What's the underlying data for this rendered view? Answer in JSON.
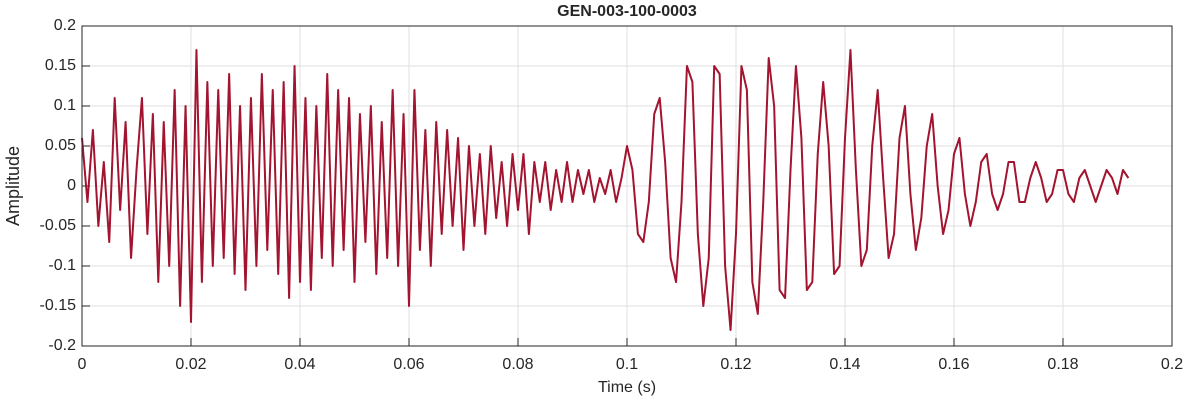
{
  "chart_data": {
    "type": "line",
    "title": "GEN-003-100-0003",
    "xlabel": "Time (s)",
    "ylabel": "Amplitude",
    "x": [
      0,
      0.001,
      0.002,
      0.003,
      0.004,
      0.005,
      0.006,
      0.007,
      0.008,
      0.009,
      0.01,
      0.011,
      0.012,
      0.013,
      0.014,
      0.015,
      0.016,
      0.017,
      0.018,
      0.019,
      0.02,
      0.021,
      0.022,
      0.023,
      0.024,
      0.025,
      0.026,
      0.027,
      0.028,
      0.029,
      0.03,
      0.031,
      0.032,
      0.033,
      0.034,
      0.035,
      0.036,
      0.037,
      0.038,
      0.039,
      0.04,
      0.041,
      0.042,
      0.043,
      0.044,
      0.045,
      0.046,
      0.047,
      0.048,
      0.049,
      0.05,
      0.051,
      0.052,
      0.053,
      0.054,
      0.055,
      0.056,
      0.057,
      0.058,
      0.059,
      0.06,
      0.061,
      0.062,
      0.063,
      0.064,
      0.065,
      0.066,
      0.067,
      0.068,
      0.069,
      0.07,
      0.071,
      0.072,
      0.073,
      0.074,
      0.075,
      0.076,
      0.077,
      0.078,
      0.079,
      0.08,
      0.081,
      0.082,
      0.083,
      0.084,
      0.085,
      0.086,
      0.087,
      0.088,
      0.089,
      0.09,
      0.091,
      0.092,
      0.093,
      0.094,
      0.095,
      0.096,
      0.097,
      0.098,
      0.099,
      0.1,
      0.101,
      0.102,
      0.103,
      0.104,
      0.105,
      0.106,
      0.107,
      0.108,
      0.109,
      0.11,
      0.111,
      0.112,
      0.113,
      0.114,
      0.115,
      0.116,
      0.117,
      0.118,
      0.119,
      0.12,
      0.121,
      0.122,
      0.123,
      0.124,
      0.125,
      0.126,
      0.127,
      0.128,
      0.129,
      0.13,
      0.131,
      0.132,
      0.133,
      0.134,
      0.135,
      0.136,
      0.137,
      0.138,
      0.139,
      0.14,
      0.141,
      0.142,
      0.143,
      0.144,
      0.145,
      0.146,
      0.147,
      0.148,
      0.149,
      0.15,
      0.151,
      0.152,
      0.153,
      0.154,
      0.155,
      0.156,
      0.157,
      0.158,
      0.159,
      0.16,
      0.161,
      0.162,
      0.163,
      0.164,
      0.165,
      0.166,
      0.167,
      0.168,
      0.169,
      0.17,
      0.171,
      0.172,
      0.173,
      0.174,
      0.175,
      0.176,
      0.177,
      0.178,
      0.179,
      0.18,
      0.181,
      0.182,
      0.183,
      0.184,
      0.185,
      0.186,
      0.187,
      0.188,
      0.189,
      0.19,
      0.191,
      0.192
    ],
    "series": [
      {
        "color": "#a2142f",
        "values": [
          0.06,
          -0.02,
          0.07,
          -0.05,
          0.03,
          -0.07,
          0.11,
          -0.03,
          0.08,
          -0.09,
          0.02,
          0.11,
          -0.06,
          0.09,
          -0.12,
          0.08,
          -0.1,
          0.12,
          -0.15,
          0.1,
          -0.17,
          0.17,
          -0.12,
          0.13,
          -0.1,
          0.12,
          -0.09,
          0.14,
          -0.11,
          0.1,
          -0.13,
          0.11,
          -0.1,
          0.14,
          -0.08,
          0.12,
          -0.11,
          0.13,
          -0.14,
          0.15,
          -0.12,
          0.11,
          -0.13,
          0.1,
          -0.09,
          0.14,
          -0.1,
          0.12,
          -0.08,
          0.11,
          -0.12,
          0.09,
          -0.07,
          0.1,
          -0.11,
          0.08,
          -0.09,
          0.12,
          -0.1,
          0.09,
          -0.15,
          0.12,
          -0.08,
          0.07,
          -0.1,
          0.08,
          -0.06,
          0.07,
          -0.05,
          0.06,
          -0.08,
          0.05,
          -0.05,
          0.04,
          -0.06,
          0.05,
          -0.04,
          0.03,
          -0.05,
          0.04,
          -0.03,
          0.04,
          -0.06,
          0.03,
          -0.02,
          0.03,
          -0.03,
          0.02,
          -0.02,
          0.03,
          -0.02,
          0.02,
          -0.01,
          0.02,
          -0.02,
          0.01,
          -0.01,
          0.02,
          -0.02,
          0.01,
          0.05,
          0.02,
          -0.06,
          -0.07,
          -0.02,
          0.09,
          0.11,
          0.03,
          -0.09,
          -0.12,
          -0.02,
          0.15,
          0.13,
          -0.06,
          -0.15,
          -0.09,
          0.15,
          0.14,
          -0.1,
          -0.18,
          -0.06,
          0.15,
          0.12,
          -0.12,
          -0.16,
          -0.02,
          0.16,
          0.1,
          -0.13,
          -0.14,
          0.02,
          0.15,
          0.06,
          -0.13,
          -0.12,
          0.04,
          0.13,
          0.05,
          -0.11,
          -0.1,
          0.06,
          0.17,
          0.02,
          -0.1,
          -0.08,
          0.05,
          0.12,
          0.01,
          -0.09,
          -0.06,
          0.06,
          0.1,
          -0.01,
          -0.08,
          -0.04,
          0.05,
          0.09,
          0,
          -0.06,
          -0.03,
          0.04,
          0.06,
          -0.01,
          -0.05,
          -0.02,
          0.03,
          0.04,
          -0.01,
          -0.03,
          -0.01,
          0.03,
          0.03,
          -0.02,
          -0.02,
          0.01,
          0.03,
          0.01,
          -0.02,
          -0.01,
          0.02,
          0.02,
          -0.01,
          -0.02,
          0.01,
          0.02,
          0,
          -0.02,
          0,
          0.02,
          0.01,
          -0.01,
          0.02,
          0.01
        ]
      }
    ],
    "xlim": [
      0,
      0.2
    ],
    "xticks": [
      0,
      0.02,
      0.04,
      0.06,
      0.08,
      0.1,
      0.12,
      0.14,
      0.16,
      0.18,
      0.2
    ],
    "ylim": [
      -0.2,
      0.2
    ],
    "yticks": [
      -0.2,
      -0.15,
      -0.1,
      -0.05,
      0,
      0.05,
      0.1,
      0.15,
      0.2
    ],
    "grid": true
  }
}
